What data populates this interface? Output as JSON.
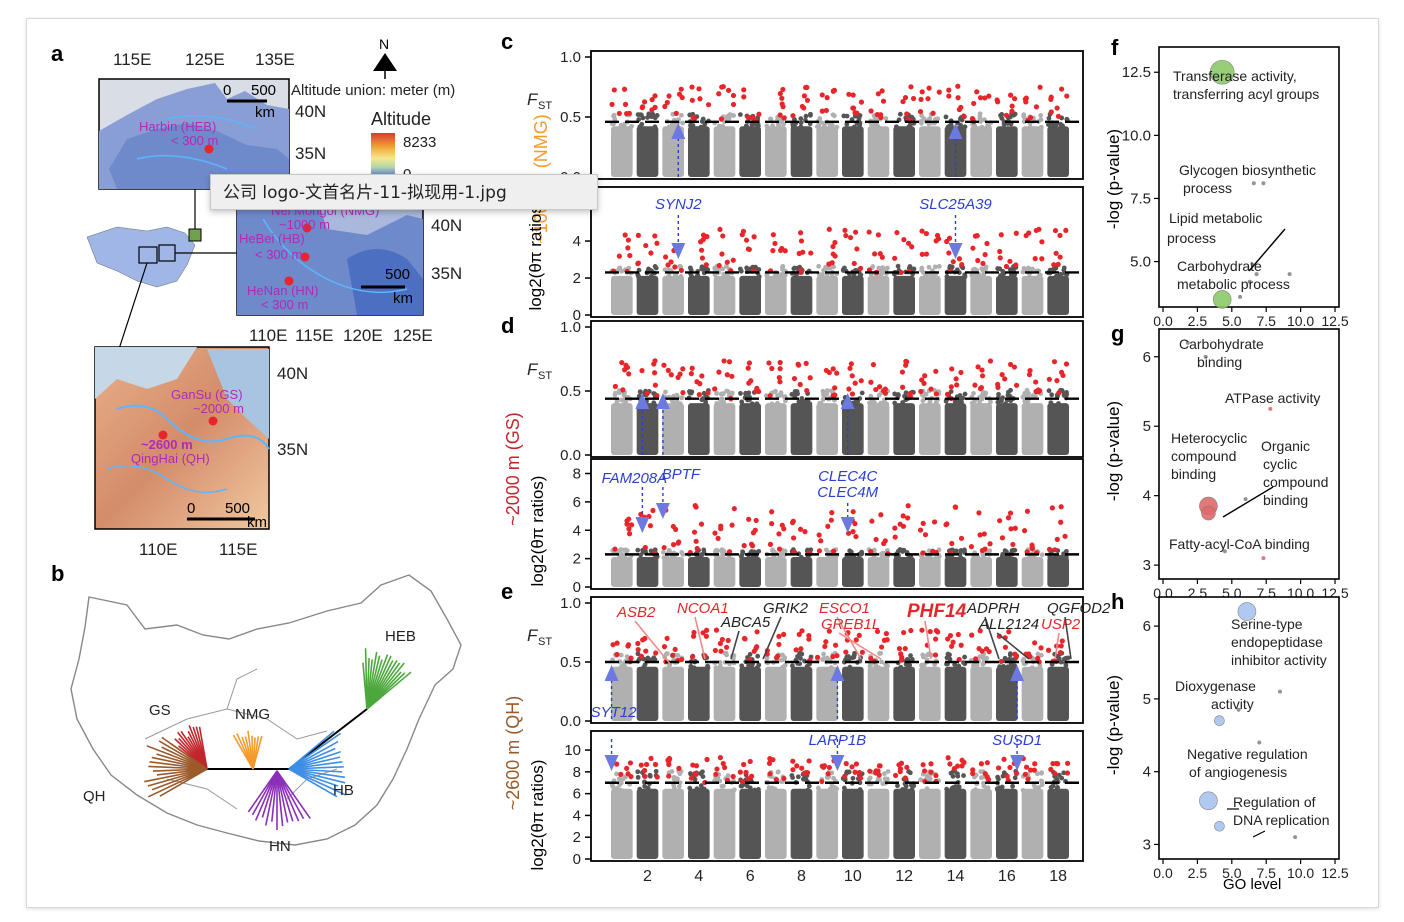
{
  "tooltip": {
    "text": "公司 logo-文首名片-11-拟现用-1.jpg"
  },
  "colors": {
    "red_hit": "#e8262a",
    "dark_grey": "#555555",
    "light_grey": "#b0b0b0",
    "annot_blue": "#2b3fd1",
    "annot_red": "#e0282a",
    "nmg_orange": "#f39a2a",
    "gs_red": "#c0262c",
    "qh_brown": "#9a5a2a",
    "hb_blue": "#3c8ee6",
    "hn_purple": "#8a2fb8",
    "heb_green": "#4ca83c"
  },
  "panel_a": {
    "label": "a",
    "top_lon_ticks": [
      "115E",
      "125E",
      "135E"
    ],
    "lat_ticks_top": [
      "40N",
      "35N"
    ],
    "scale_top": {
      "zero": "0",
      "value": "500",
      "unit": "km"
    },
    "north": "N",
    "altitude_note": "Altitude union: meter (m)",
    "legend_title": "Altitude",
    "legend_max": "8233",
    "legend_min": "0",
    "site_heb": "Harbin (HEB)",
    "site_heb_alt": "< 300 m",
    "mid_lat_ticks": [
      "40N",
      "35N"
    ],
    "mid_lon_ticks": [
      "110E",
      "115E",
      "120E",
      "125E"
    ],
    "scale_mid": {
      "value": "500",
      "unit": "km"
    },
    "site_nmg": "Nei Mongol (NMG)",
    "site_nmg_alt": "~1000 m",
    "site_hb": "HeBei (HB)",
    "site_hb_alt": "< 300 m",
    "site_hn": "HeNan (HN)",
    "site_hn_alt": "< 300 m",
    "bot_lat_ticks": [
      "40N",
      "35N"
    ],
    "bot_lon_ticks": [
      "110E",
      "115E"
    ],
    "scale_bot": {
      "zero": "0",
      "value": "500",
      "unit": "km"
    },
    "site_gs": "GanSu (GS)",
    "site_gs_alt": "~2000 m",
    "site_qh_alt": "~2600 m",
    "site_qh": "QingHai (QH)"
  },
  "panel_b": {
    "label": "b",
    "groups": [
      "HEB",
      "GS",
      "NMG",
      "QH",
      "HB",
      "HN"
    ]
  },
  "panel_c": {
    "label": "c",
    "fst_label": "F",
    "fst_sub": "ST",
    "fst_ticks": [
      "1.0",
      "0.5",
      "0.0"
    ],
    "fst_threshold": 0.46,
    "pi_ticks": [
      "0",
      "2",
      "4",
      "6"
    ],
    "pi_threshold": 2.3,
    "ylabel_pi": "log2(θπ ratios)",
    "side_label": "~1000 m (NMG)",
    "genes": [
      {
        "name": "SYNJ2",
        "chr": 3.2
      },
      {
        "name": "SLC25A39",
        "chr": 14
      }
    ]
  },
  "panel_d": {
    "label": "d",
    "fst_label": "F",
    "fst_sub": "ST",
    "fst_ticks": [
      "1.0",
      "0.5",
      "0.0"
    ],
    "fst_threshold": 0.44,
    "pi_ticks": [
      "0",
      "2",
      "4",
      "6",
      "8"
    ],
    "pi_threshold": 2.3,
    "ylabel_pi": "log2(θπ ratios)",
    "side_label": "~2000 m (GS)",
    "genes": [
      {
        "name": "FAM208A",
        "chr": 1.8
      },
      {
        "name": "BPTF",
        "chr": 2.6
      },
      {
        "name": "CLEC4C",
        "chr": 9.8
      },
      {
        "name": "CLEC4M",
        "chr": 9.8
      }
    ]
  },
  "panel_e": {
    "label": "e",
    "fst_label": "F",
    "fst_sub": "ST",
    "fst_ticks": [
      "1.0",
      "0.5",
      "0.0"
    ],
    "fst_threshold": 0.5,
    "pi_ticks": [
      "0",
      "2",
      "4",
      "6",
      "8",
      "10"
    ],
    "pi_threshold": 7.0,
    "ylabel_pi": "log2(θπ ratios)",
    "side_label": "~2600 m (QH)",
    "fst_genes": [
      {
        "name": "ASB2",
        "color": "red"
      },
      {
        "name": "NCOA1",
        "color": "red"
      },
      {
        "name": "ABCA5",
        "color": "black"
      },
      {
        "name": "GRIK2",
        "color": "black"
      },
      {
        "name": "ESCO1",
        "color": "red"
      },
      {
        "name": "GREB1L",
        "color": "red"
      },
      {
        "name": "PHF14",
        "color": "red"
      },
      {
        "name": "ADPRH",
        "color": "black"
      },
      {
        "name": "ALL2124",
        "color": "black"
      },
      {
        "name": "USP2",
        "color": "red"
      },
      {
        "name": "QGFOD2",
        "color": "black"
      }
    ],
    "blue_genes": [
      {
        "name": "SYT12",
        "chr": 0.6
      },
      {
        "name": "LARP1B",
        "chr": 9.4
      },
      {
        "name": "SUSD1",
        "chr": 16.4
      }
    ],
    "chr_ticks": [
      "2",
      "4",
      "6",
      "8",
      "10",
      "12",
      "14",
      "16",
      "18"
    ]
  },
  "panel_f": {
    "label": "f",
    "ylabel": "-log (p-value)",
    "y_ticks": [
      "12.5",
      "10.0",
      "7.5",
      "5.0"
    ],
    "x_ticks": [
      "0.0",
      "2.5",
      "5.0",
      "7.5",
      "10.0",
      "12.5"
    ],
    "terms": [
      "Transferase activity,",
      "transferring acyl groups",
      "Glycogen biosynthetic",
      "process",
      "Lipid metabolic",
      "process",
      "Carbohydrate",
      "metabolic process"
    ],
    "chart_data": {
      "type": "scatter",
      "xlabel": "",
      "ylabel": "-log (p-value)",
      "xlim": [
        0,
        12.5
      ],
      "ylim": [
        3.2,
        13.5
      ],
      "points": [
        {
          "x": 4.3,
          "y": 12.5,
          "size": 12,
          "color": "#8cc96a"
        },
        {
          "x": 4.3,
          "y": 3.5,
          "size": 9,
          "color": "#8cc96a"
        },
        {
          "x": 6.6,
          "y": 8.1,
          "size": 2,
          "color": "#888888"
        },
        {
          "x": 7.3,
          "y": 8.1,
          "size": 2,
          "color": "#888888"
        },
        {
          "x": 6.8,
          "y": 4.5,
          "size": 2,
          "color": "#888888"
        },
        {
          "x": 9.2,
          "y": 4.5,
          "size": 2,
          "color": "#888888"
        },
        {
          "x": 5.6,
          "y": 3.6,
          "size": 2,
          "color": "#888888"
        },
        {
          "x": 6.3,
          "y": 4.2,
          "size": 2,
          "color": "#888888"
        }
      ]
    }
  },
  "panel_g": {
    "label": "g",
    "ylabel": "-log (p-value)",
    "y_ticks": [
      "6",
      "5",
      "4",
      "3"
    ],
    "x_ticks": [
      "0.0",
      "2.5",
      "5.0",
      "7.5",
      "10.0",
      "12.5"
    ],
    "terms": [
      "Carbohydrate",
      "binding",
      "ATPase activity",
      "Heterocyclic",
      "compound",
      "binding",
      "Organic",
      "cyclic",
      "compound",
      "binding",
      "Fatty-acyl-CoA binding"
    ],
    "chart_data": {
      "type": "scatter",
      "xlabel": "",
      "ylabel": "-log (p-value)",
      "xlim": [
        0,
        12.5
      ],
      "ylim": [
        2.8,
        6.4
      ],
      "points": [
        {
          "x": 3.3,
          "y": 3.85,
          "size": 9,
          "color": "#e06a6a"
        },
        {
          "x": 3.3,
          "y": 3.75,
          "size": 7,
          "color": "#e06a6a"
        },
        {
          "x": 1.8,
          "y": 6.2,
          "size": 2,
          "color": "#888888"
        },
        {
          "x": 3.1,
          "y": 6.0,
          "size": 2,
          "color": "#888888"
        },
        {
          "x": 7.8,
          "y": 5.25,
          "size": 2,
          "color": "#e06a6a"
        },
        {
          "x": 7.3,
          "y": 3.1,
          "size": 2,
          "color": "#e06a6a"
        },
        {
          "x": 6.0,
          "y": 3.95,
          "size": 2,
          "color": "#888888"
        },
        {
          "x": 4.5,
          "y": 3.2,
          "size": 2,
          "color": "#888888"
        }
      ]
    }
  },
  "panel_h": {
    "label": "h",
    "ylabel": "-log (p-value)",
    "xlabel": "GO level",
    "y_ticks": [
      "6",
      "5",
      "4",
      "3"
    ],
    "x_ticks": [
      "0.0",
      "2.5",
      "5.0",
      "7.5",
      "10.0",
      "12.5"
    ],
    "terms": [
      "Serine-type",
      "endopeptidase",
      "inhibitor activity",
      "Dioxygenase",
      "activity",
      "Negative regulation",
      "of angiogenesis",
      "Regulation of",
      "DNA replication"
    ],
    "chart_data": {
      "type": "scatter",
      "xlabel": "GO level",
      "ylabel": "-log (p-value)",
      "xlim": [
        0,
        12.5
      ],
      "ylim": [
        2.8,
        6.4
      ],
      "points": [
        {
          "x": 6.1,
          "y": 6.2,
          "size": 9,
          "color": "#a8c4f0"
        },
        {
          "x": 3.3,
          "y": 3.6,
          "size": 9,
          "color": "#a8c4f0"
        },
        {
          "x": 4.1,
          "y": 4.7,
          "size": 5,
          "color": "#a8c4f0"
        },
        {
          "x": 4.1,
          "y": 3.25,
          "size": 5,
          "color": "#a8c4f0"
        },
        {
          "x": 8.5,
          "y": 5.1,
          "size": 2,
          "color": "#888888"
        },
        {
          "x": 5.5,
          "y": 4.85,
          "size": 2,
          "color": "#888888"
        },
        {
          "x": 7.0,
          "y": 4.4,
          "size": 2,
          "color": "#888888"
        },
        {
          "x": 9.6,
          "y": 3.1,
          "size": 2,
          "color": "#888888"
        }
      ]
    }
  }
}
